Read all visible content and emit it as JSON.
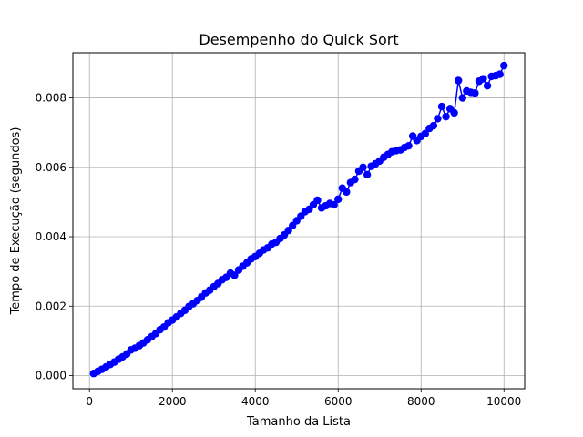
{
  "chart_data": {
    "type": "line",
    "title": "Desempenho do Quick Sort",
    "xlabel": "Tamanho da Lista",
    "ylabel": "Tempo de Execução (segundos)",
    "xlim": [
      -400,
      10500
    ],
    "ylim": [
      -0.00038,
      0.0093
    ],
    "xticks": [
      0,
      2000,
      4000,
      6000,
      8000,
      10000
    ],
    "xtick_labels": [
      "0",
      "2000",
      "4000",
      "6000",
      "8000",
      "10000"
    ],
    "yticks": [
      0.0,
      0.002,
      0.004,
      0.006,
      0.008
    ],
    "ytick_labels": [
      "0.000",
      "0.002",
      "0.004",
      "0.006",
      "0.008"
    ],
    "grid": true,
    "series": [
      {
        "color": "#0000ff",
        "marker": "circle",
        "x": [
          100,
          200,
          300,
          400,
          500,
          600,
          700,
          800,
          900,
          1000,
          1100,
          1200,
          1300,
          1400,
          1500,
          1600,
          1700,
          1800,
          1900,
          2000,
          2100,
          2200,
          2300,
          2400,
          2500,
          2600,
          2700,
          2800,
          2900,
          3000,
          3100,
          3200,
          3300,
          3400,
          3500,
          3600,
          3700,
          3800,
          3900,
          4000,
          4100,
          4200,
          4300,
          4400,
          4500,
          4600,
          4700,
          4800,
          4900,
          5000,
          5100,
          5200,
          5300,
          5400,
          5500,
          5600,
          5700,
          5800,
          5900,
          6000,
          6100,
          6200,
          6300,
          6400,
          6500,
          6600,
          6700,
          6800,
          6900,
          7000,
          7100,
          7200,
          7300,
          7400,
          7500,
          7600,
          7700,
          7800,
          7900,
          8000,
          8100,
          8200,
          8300,
          8400,
          8500,
          8600,
          8700,
          8800,
          8900,
          9000,
          9100,
          9200,
          9300,
          9400,
          9500,
          9600,
          9700,
          9800,
          9900,
          10000
        ],
        "y": [
          6e-05,
          0.00012,
          0.00018,
          0.00025,
          0.00032,
          0.00039,
          0.00047,
          0.00054,
          0.00062,
          0.00074,
          0.00079,
          0.00086,
          0.00094,
          0.00103,
          0.00112,
          0.00121,
          0.00132,
          0.0014,
          0.00152,
          0.0016,
          0.00169,
          0.00179,
          0.00188,
          0.00199,
          0.00207,
          0.00216,
          0.00226,
          0.00238,
          0.00246,
          0.00256,
          0.00265,
          0.00276,
          0.00283,
          0.00295,
          0.00289,
          0.00304,
          0.00315,
          0.00325,
          0.00336,
          0.00343,
          0.00352,
          0.00362,
          0.00368,
          0.00379,
          0.00384,
          0.00395,
          0.00405,
          0.00418,
          0.00432,
          0.00446,
          0.00459,
          0.00472,
          0.00479,
          0.00492,
          0.00505,
          0.00483,
          0.00489,
          0.00496,
          0.00492,
          0.00508,
          0.0054,
          0.00529,
          0.00556,
          0.00565,
          0.00589,
          0.006,
          0.00579,
          0.00603,
          0.0061,
          0.00618,
          0.00629,
          0.00637,
          0.00645,
          0.00648,
          0.0065,
          0.00657,
          0.00662,
          0.0069,
          0.00677,
          0.00689,
          0.00697,
          0.00712,
          0.0072,
          0.0074,
          0.00775,
          0.00746,
          0.00769,
          0.00757,
          0.0085,
          0.008,
          0.0082,
          0.00816,
          0.00814,
          0.00848,
          0.00855,
          0.00835,
          0.00862,
          0.00864,
          0.00868,
          0.00893
        ]
      }
    ]
  }
}
